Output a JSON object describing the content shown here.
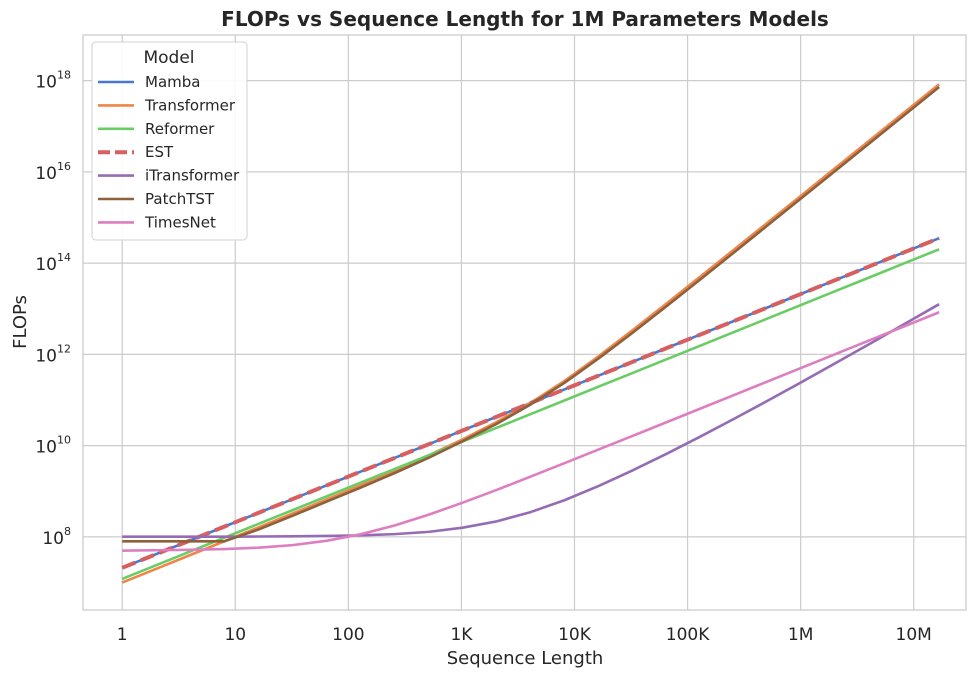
{
  "chart_data": {
    "type": "line",
    "title": "FLOPs vs Sequence Length for 1M Parameters Models",
    "xlabel": "Sequence Length",
    "ylabel": "FLOPs",
    "xscale": "log",
    "yscale": "log",
    "xlim": [
      0.45,
      29000000
    ],
    "ylim": [
      2500000,
      10000000000000000000
    ],
    "grid": true,
    "legend": {
      "title": "Model",
      "placement": "top-left"
    },
    "xticks": [
      {
        "value": 1,
        "label": "1"
      },
      {
        "value": 10,
        "label": "10"
      },
      {
        "value": 100,
        "label": "100"
      },
      {
        "value": 1000,
        "label": "1K"
      },
      {
        "value": 10000,
        "label": "10K"
      },
      {
        "value": 100000,
        "label": "100K"
      },
      {
        "value": 1000000,
        "label": "1M"
      },
      {
        "value": 10000000,
        "label": "10M"
      }
    ],
    "yticks": [
      {
        "value": 100000000,
        "base": "10",
        "exp": "8"
      },
      {
        "value": 10000000000,
        "base": "10",
        "exp": "10"
      },
      {
        "value": 1000000000000,
        "base": "10",
        "exp": "12"
      },
      {
        "value": 100000000000000,
        "base": "10",
        "exp": "14"
      },
      {
        "value": 10000000000000000,
        "base": "10",
        "exp": "16"
      },
      {
        "value": 1000000000000000000,
        "base": "10",
        "exp": "18"
      }
    ],
    "x": [
      1,
      2,
      4,
      8,
      16,
      32,
      64,
      128,
      256,
      512,
      1024,
      2048,
      4096,
      8192,
      16384,
      32768,
      65536,
      131072,
      262144,
      524288,
      1048576,
      2097152,
      4194304,
      8388608,
      16777216
    ],
    "series": [
      {
        "name": "Mamba",
        "color": "#4878d0",
        "style": "solid",
        "values": [
          21000000,
          42000000,
          84000000,
          168000000,
          336000000,
          672000000,
          1340000000,
          2690000000,
          5370000000,
          10700000000,
          21500000000,
          43000000000,
          86000000000,
          172000000000,
          344000000000,
          688000000000,
          1380000000000,
          2750000000000,
          5500000000000,
          11000000000000,
          22000000000000,
          44000000000000,
          88000000000000,
          176000000000000,
          352000000000000
        ]
      },
      {
        "name": "Transformer",
        "color": "#ee854a",
        "style": "solid",
        "values": [
          10000000,
          20000000,
          40100000,
          80300000,
          161000000,
          324000000,
          656000000,
          1340000000,
          2820000000,
          6100000000,
          13700000000,
          32900000000,
          87000000000,
          264000000000,
          914000000000,
          3410000000000,
          13200000000000,
          51800000000000,
          205000000000000,
          815000000000000,
          3250000000000000,
          13000000000000000,
          51900000000000000,
          208000000000000000,
          830000000000000000
        ]
      },
      {
        "name": "Reformer",
        "color": "#6acc64",
        "style": "solid",
        "values": [
          12000000,
          24000000,
          48000000,
          96000000,
          192000000,
          384000000,
          768000000,
          1540000000,
          3070000000,
          6140000000,
          12300000000,
          24600000000,
          49200000000,
          98300000000,
          197000000000,
          393000000000,
          786000000000,
          1570000000000,
          3150000000000,
          6290000000000,
          12600000000000,
          25200000000000,
          50300000000000,
          101000000000000,
          201000000000000
        ]
      },
      {
        "name": "EST",
        "color": "#d65f5f",
        "style": "dashed",
        "values": [
          21000000,
          42000000,
          84000000,
          168000000,
          336000000,
          672000000,
          1340000000,
          2690000000,
          5370000000,
          10700000000,
          21500000000,
          43000000000,
          86000000000,
          172000000000,
          344000000000,
          688000000000,
          1380000000000,
          2750000000000,
          5500000000000,
          11000000000000,
          22000000000000,
          44000000000000,
          88000000000000,
          176000000000000,
          352000000000000
        ]
      },
      {
        "name": "iTransformer",
        "color": "#956cb4",
        "style": "solid",
        "values": [
          101000000,
          101000000,
          101000000,
          101000000,
          102000000,
          103000000,
          105000000,
          108000000,
          115000000,
          129000000,
          159000000,
          219000000,
          350000000,
          640000000,
          1310000000,
          2880000000,
          6660000000,
          16000000000,
          39600000000,
          100000000000,
          257000000000,
          671000000000,
          1770000000000,
          4710000000000,
          12600000000000
        ]
      },
      {
        "name": "PatchTST",
        "color": "#8c613c",
        "style": "solid",
        "values": [
          80000000,
          80000000,
          80000000,
          80000000,
          145000000,
          290000000,
          590000000,
          1200000000,
          2500000000,
          5400000000,
          12500000000,
          30000000000,
          80000000000,
          240000000000,
          820000000000,
          3000000000000,
          11500000000000,
          45000000000000,
          178000000000000,
          710000000000000,
          2830000000000000,
          11300000000000000,
          45200000000000000,
          181000000000000000,
          723000000000000000
        ]
      },
      {
        "name": "TimesNet",
        "color": "#dc7ec0",
        "style": "solid",
        "values": [
          50000000,
          51000000,
          52000000,
          54000000,
          58000000,
          66000000,
          82000000,
          114000000,
          178000000,
          306000000,
          562000000,
          1070000000,
          2100000000,
          4150000000,
          8250000000,
          16400000000,
          32800000000,
          65600000000,
          131000000000,
          262000000000,
          524000000000,
          1050000000000,
          2100000000000,
          4190000000000,
          8390000000000
        ]
      }
    ]
  }
}
